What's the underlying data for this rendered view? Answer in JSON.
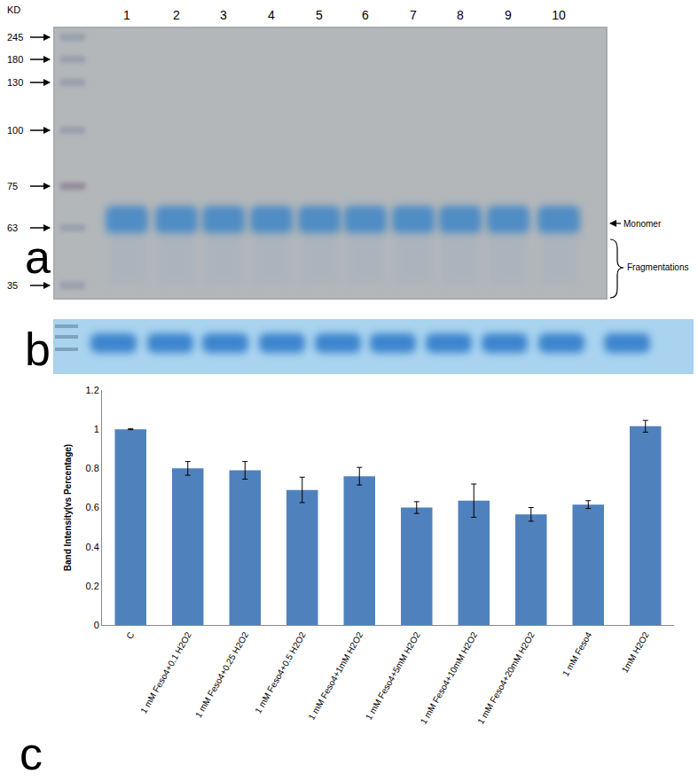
{
  "chart_data": {
    "type": "bar",
    "categories": [
      "C",
      "1 mM Feso4+0.1 H2O2",
      "1 mM Feso4+0.25 H2O2",
      "1 mM Feso4+0.5 H2O2",
      "1 mM Feso4+1mM H2O2",
      "1 mM Feso4+5mM H2O2",
      "1 mM Feso4+10mM H2O2",
      "1 mM Feso4+20mM H2O2",
      "1 mM Feso4",
      "1mM H2O2"
    ],
    "values": [
      1.0,
      0.8,
      0.79,
      0.69,
      0.76,
      0.6,
      0.635,
      0.565,
      0.615,
      1.015
    ],
    "errors": [
      0.002,
      0.035,
      0.045,
      0.065,
      0.045,
      0.03,
      0.085,
      0.035,
      0.02,
      0.03
    ],
    "color": "#4f81bd",
    "y_label": "Band Intensity(vs Percentage)",
    "ylim": [
      0,
      1.2
    ],
    "yticks": [
      0,
      0.2,
      0.4,
      0.6,
      0.8,
      1,
      1.2
    ],
    "grid": false
  },
  "gel": {
    "unit_label": "KD",
    "ladder": [
      245,
      180,
      130,
      100,
      75,
      63,
      35
    ],
    "lanes": [
      "1",
      "2",
      "3",
      "4",
      "5",
      "6",
      "7",
      "8",
      "9",
      "10"
    ],
    "monomer_label": "Monomer",
    "fragment_label": "Fragmentations",
    "panel_labels": [
      "a",
      "b",
      "c"
    ]
  }
}
